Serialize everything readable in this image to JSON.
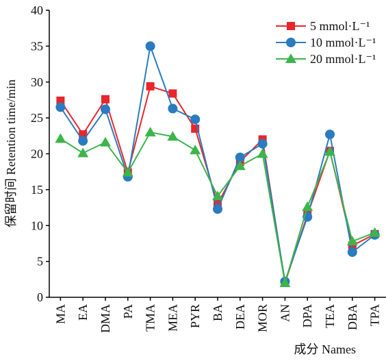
{
  "chart_data": {
    "type": "line",
    "x_label": "成分  Names",
    "y_label": "保留时间  Retention time/min",
    "categories": [
      "MA",
      "EA",
      "DMA",
      "PA",
      "TMA",
      "MEA",
      "PYR",
      "BA",
      "DEA",
      "MOR",
      "AN",
      "DPA",
      "TEA",
      "DBA",
      "TPA"
    ],
    "series": [
      {
        "name": "5 mmol·L⁻¹",
        "color": "#e8262b",
        "marker": "square",
        "values": [
          27.4,
          22.7,
          27.6,
          17.4,
          29.4,
          28.4,
          23.5,
          13.0,
          18.9,
          22.0,
          2.0,
          11.5,
          20.4,
          7.2,
          8.8
        ]
      },
      {
        "name": "10 mmol·L⁻¹",
        "color": "#2a7bbf",
        "marker": "circle",
        "values": [
          26.5,
          21.8,
          26.2,
          16.8,
          35.0,
          26.3,
          24.8,
          12.3,
          19.5,
          21.4,
          2.2,
          11.2,
          22.7,
          6.3,
          8.7
        ]
      },
      {
        "name": "20 mmol·L⁻¹",
        "color": "#3cb54a",
        "marker": "triangle",
        "values": [
          22.1,
          20.1,
          21.6,
          17.4,
          23.0,
          22.4,
          20.5,
          14.1,
          18.3,
          20.0,
          2.0,
          12.6,
          20.3,
          7.8,
          9.0
        ]
      }
    ],
    "ylim": [
      0,
      40
    ],
    "yticks": [
      0,
      5,
      10,
      15,
      20,
      25,
      30,
      35,
      40
    ],
    "legend": "top-right"
  }
}
